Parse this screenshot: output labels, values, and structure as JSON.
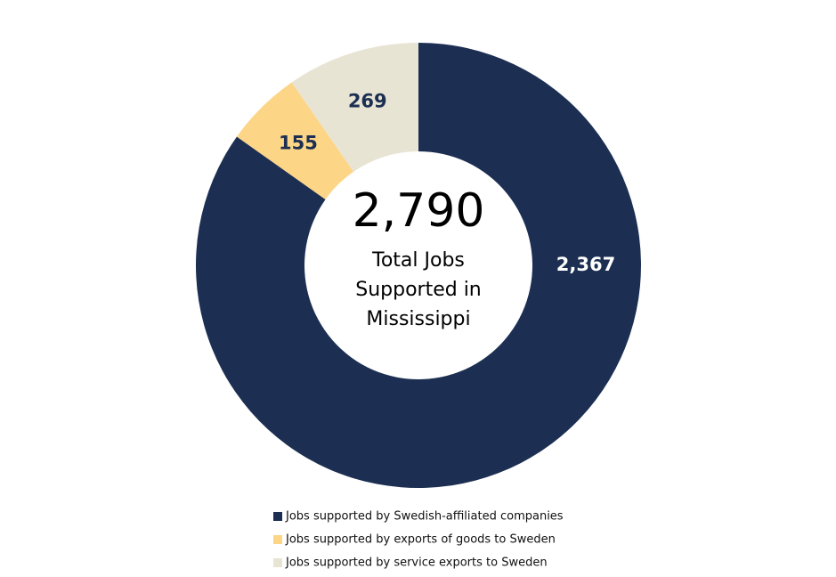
{
  "chart_data": {
    "type": "donut",
    "categories": [
      "Jobs supported by Swedish-affiliated companies",
      "Jobs supported by exports of goods to Sweden",
      "Jobs supported by service exports to Sweden"
    ],
    "values": [
      2367,
      155,
      269
    ],
    "value_labels": [
      "2,367",
      "155",
      "269"
    ],
    "colors": [
      "#1c2f52",
      "#fdd587",
      "#e8e4d4"
    ],
    "label_colors": [
      "#ffffff",
      "#1c2f52",
      "#1c2f52"
    ],
    "center_value": "2,790",
    "center_text": [
      "Total Jobs",
      "Supported in",
      "Mississippi"
    ]
  }
}
